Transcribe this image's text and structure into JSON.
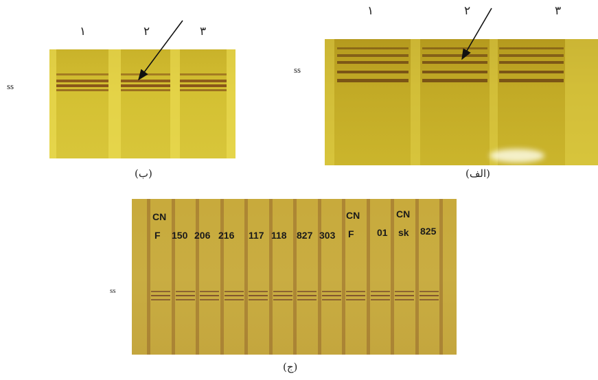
{
  "panels": [
    {
      "caption": "(ب)",
      "side_label": "ss",
      "lanes": [
        "۱",
        "۲",
        "۳"
      ]
    },
    {
      "caption": "(الف)",
      "side_label": "ss",
      "lanes": [
        "۱",
        "۲",
        "۳"
      ]
    },
    {
      "caption": "(ج)",
      "side_label": "ss",
      "lanes": [
        {
          "top": "CN",
          "label": "F"
        },
        {
          "label": "150"
        },
        {
          "label": "206"
        },
        {
          "label": "216"
        },
        {
          "label": "117"
        },
        {
          "label": "118"
        },
        {
          "label": "827"
        },
        {
          "label": "303"
        },
        {
          "top": "CN",
          "label": "F"
        },
        {
          "label": "01"
        },
        {
          "top": "CN",
          "label": "sk"
        },
        {
          "label": "825"
        }
      ]
    }
  ]
}
